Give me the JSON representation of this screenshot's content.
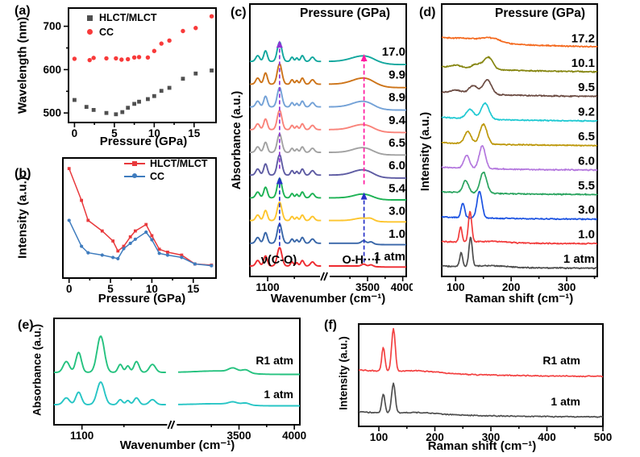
{
  "chart_data": [
    {
      "id": "a",
      "letter": "(a)",
      "type": "scatter",
      "xlabel": "Pressure (GPa)",
      "ylabel": "Wavelength (nm)",
      "xlim": [
        -0.75,
        17.75
      ],
      "ylim": [
        478,
        742
      ],
      "xticks": [
        0,
        5,
        10,
        15
      ],
      "xminors": [
        2.5,
        7.5,
        12.5
      ],
      "yticks": [
        500,
        600,
        700
      ],
      "yminors": [
        550,
        650
      ],
      "legend_pos": "top-left",
      "series": [
        {
          "name": "HLCT/MLCT",
          "marker": "square",
          "color": "#4f4f4f",
          "points": [
            [
              0,
              530
            ],
            [
              1.5,
              514
            ],
            [
              2.4,
              507
            ],
            [
              4.0,
              500
            ],
            [
              5.2,
              497
            ],
            [
              6.0,
              502
            ],
            [
              6.7,
              512
            ],
            [
              7.5,
              521
            ],
            [
              8.1,
              526
            ],
            [
              9.2,
              532
            ],
            [
              10.0,
              539
            ],
            [
              10.9,
              551
            ],
            [
              11.9,
              558
            ],
            [
              13.6,
              579
            ],
            [
              15.2,
              591
            ],
            [
              17.2,
              598
            ]
          ]
        },
        {
          "name": "CC",
          "marker": "circle",
          "color": "#f83a3a",
          "points": [
            [
              0,
              625
            ],
            [
              1.9,
              622
            ],
            [
              2.4,
              627
            ],
            [
              4.0,
              626
            ],
            [
              5.2,
              626
            ],
            [
              5.9,
              623
            ],
            [
              6.7,
              624
            ],
            [
              7.5,
              628
            ],
            [
              8.1,
              629
            ],
            [
              9.2,
              628
            ],
            [
              10.0,
              643
            ],
            [
              10.9,
              660
            ],
            [
              11.9,
              667
            ],
            [
              13.6,
              689
            ],
            [
              15.2,
              696
            ],
            [
              17.2,
              723
            ]
          ]
        }
      ]
    },
    {
      "id": "b",
      "letter": "(b)",
      "type": "line",
      "xlabel": "Pressure (GPa)",
      "ylabel": "Intensity (a.u.)",
      "xlim": [
        -0.75,
        17.75
      ],
      "ylim": [
        0,
        1.02
      ],
      "xticks": [
        0,
        5,
        10,
        15
      ],
      "xminors": [
        2.5,
        7.5,
        12.5
      ],
      "legend_pos": "top-right",
      "y_units": "normalized (a.u.)",
      "series": [
        {
          "name": "HLCT/MLCT",
          "marker": "square",
          "color": "#e8393c",
          "points": [
            [
              0,
              0.93
            ],
            [
              1.5,
              0.66
            ],
            [
              2.3,
              0.49
            ],
            [
              4,
              0.4
            ],
            [
              5.3,
              0.315
            ],
            [
              5.9,
              0.23
            ],
            [
              6.6,
              0.27
            ],
            [
              7.4,
              0.35
            ],
            [
              8,
              0.4
            ],
            [
              9.3,
              0.455
            ],
            [
              10,
              0.36
            ],
            [
              10.9,
              0.245
            ],
            [
              11.9,
              0.22
            ],
            [
              13.6,
              0.195
            ],
            [
              15.2,
              0.12
            ],
            [
              17.2,
              0.11
            ]
          ]
        },
        {
          "name": "CC",
          "marker": "circle",
          "color": "#3f7cbe",
          "points": [
            [
              0,
              0.49
            ],
            [
              1.5,
              0.27
            ],
            [
              2.3,
              0.215
            ],
            [
              4,
              0.195
            ],
            [
              5.3,
              0.175
            ],
            [
              5.9,
              0.165
            ],
            [
              6.6,
              0.25
            ],
            [
              7.4,
              0.295
            ],
            [
              8,
              0.33
            ],
            [
              9.3,
              0.39
            ],
            [
              10,
              0.325
            ],
            [
              10.9,
              0.21
            ],
            [
              11.9,
              0.195
            ],
            [
              13.6,
              0.175
            ],
            [
              15.2,
              0.12
            ],
            [
              17.2,
              0.105
            ]
          ]
        }
      ]
    },
    {
      "id": "c",
      "letter": "(c)",
      "type": "spectra-ir-stack",
      "title": "Pressure (GPa)",
      "xlabel": "Wavenumber (cm⁻¹)",
      "ylabel": "Absorbance (a.u.)",
      "annotations": {
        "nu_co": "ν(C-O)",
        "oh_i": "O-H···I"
      },
      "axis": {
        "seg1": {
          "wn": [
            1000,
            1400
          ],
          "frac": [
            0,
            0.455
          ]
        },
        "seg2": {
          "wn": [
            2950,
            4050
          ],
          "frac": [
            0.505,
            1
          ]
        },
        "break_frac": 0.48,
        "xticks": [
          {
            "wn": 1100,
            "label": "1100"
          },
          {
            "wn": 3500,
            "label": "3500"
          },
          {
            "wn": 4000,
            "label": "4000"
          }
        ],
        "xminors": [
          {
            "wn": 1250
          },
          {
            "wn": 3250
          },
          {
            "wn": 3750
          }
        ]
      },
      "shared_peaks": [
        [
          1044,
          0.3,
          11
        ],
        [
          1088,
          0.55,
          10
        ],
        [
          1167,
          1.0,
          13
        ],
        [
          1237,
          0.22,
          8
        ],
        [
          1264,
          0.18,
          7
        ],
        [
          1295,
          0.3,
          9
        ],
        [
          1352,
          0.22,
          11
        ]
      ],
      "stack_order": "bottom-to-top",
      "traces": [
        {
          "label": "1 atm",
          "color": "#ee2b30",
          "amp": 0.95,
          "oh": [
            [
              3445,
              0.1,
              30
            ],
            [
              3550,
              0.08,
              28
            ]
          ]
        },
        {
          "label": "1.0",
          "color": "#3866a8",
          "amp": 1.0,
          "oh": [
            [
              3445,
              0.14,
              32
            ],
            [
              3550,
              0.1,
              30
            ]
          ]
        },
        {
          "label": "3.0",
          "color": "#fdc52e",
          "amp": 0.95,
          "oh": [
            [
              3430,
              0.13,
              110
            ],
            [
              3550,
              0.07,
              40
            ]
          ]
        },
        {
          "label": "5.4",
          "color": "#1db254",
          "amp": 1.0,
          "oh": [
            [
              3440,
              0.2,
              130
            ]
          ]
        },
        {
          "label": "6.0",
          "color": "#5e5ca3",
          "amp": 1.05,
          "oh": [
            [
              3435,
              0.28,
              140
            ]
          ]
        },
        {
          "label": "6.5",
          "color": "#a2a2a2",
          "amp": 0.95,
          "oh": [
            [
              3435,
              0.25,
              140
            ]
          ]
        },
        {
          "label": "9.4",
          "color": "#f9837a",
          "amp": 1.0,
          "oh": [
            [
              3435,
              0.27,
              150
            ]
          ]
        },
        {
          "label": "8.9",
          "color": "#74a2d7",
          "amp": 1.0,
          "oh": [
            [
              3440,
              0.3,
              150
            ]
          ]
        },
        {
          "label": "9.9",
          "color": "#cd7419",
          "amp": 1.05,
          "oh": [
            [
              3450,
              0.33,
              160
            ]
          ]
        },
        {
          "label": "17.0",
          "color": "#12a79e",
          "amp": 1.0,
          "oh": [
            [
              3450,
              0.3,
              170
            ]
          ]
        }
      ],
      "arrows": [
        {
          "wn": 1167,
          "from": 0,
          "to": 3,
          "color": "#2731c8",
          "style": "dashed"
        },
        {
          "wn": 1167,
          "from": 3,
          "to": 9,
          "color": "#8f33d6",
          "style": "dashed"
        },
        {
          "wn": 3450,
          "from": 0,
          "to": 3,
          "color": "#2731c8",
          "style": "dashed"
        },
        {
          "wn": 3450,
          "from": 3,
          "to": 9,
          "color": "#ff1aa0",
          "style": "dashed"
        }
      ]
    },
    {
      "id": "d",
      "letter": "(d)",
      "type": "spectra-raman-stack",
      "title": "Pressure (GPa)",
      "xlabel": "Raman shift (cm⁻¹)",
      "ylabel": "Intensity (a.u.)",
      "axis": {
        "range": [
          75,
          355
        ],
        "xticks": [
          100,
          200,
          300
        ],
        "xminors": [
          150,
          250,
          350
        ]
      },
      "stack_order": "bottom-to-top",
      "traces": [
        {
          "label": "1 atm",
          "color": "#4d4d4d",
          "peaks": [
            [
              110,
              0.48,
              2.6
            ],
            [
              127,
              1.0,
              3.0
            ],
            [
              168,
              0.05,
              25
            ]
          ],
          "lift": 3
        },
        {
          "label": "1.0",
          "color": "#f23d3d",
          "peaks": [
            [
              109,
              0.52,
              2.6
            ],
            [
              126,
              1.05,
              3.0
            ],
            [
              168,
              0.05,
              25
            ]
          ],
          "lift": 3
        },
        {
          "label": "3.0",
          "color": "#1c53e2",
          "peaks": [
            [
              113,
              0.5,
              3.2
            ],
            [
              143,
              0.92,
              4.5
            ]
          ],
          "lift": 3
        },
        {
          "label": "5.5",
          "color": "#2aa45f",
          "peaks": [
            [
              118,
              0.42,
              5.0
            ],
            [
              150,
              0.72,
              6.0
            ]
          ],
          "lift": 4
        },
        {
          "label": "6.0",
          "color": "#b478de",
          "peaks": [
            [
              120,
              0.45,
              5.0
            ],
            [
              148,
              0.78,
              5.5
            ]
          ],
          "lift": 4
        },
        {
          "label": "6.5",
          "color": "#bd980b",
          "peaks": [
            [
              122,
              0.42,
              6.0
            ],
            [
              150,
              0.68,
              6.5
            ]
          ],
          "lift": 4
        },
        {
          "label": "9.2",
          "color": "#1fc9d2",
          "peaks": [
            [
              126,
              0.32,
              7.0
            ],
            [
              153,
              0.55,
              7.0
            ]
          ],
          "lift": 5
        },
        {
          "label": "9.5",
          "color": "#6c4c43",
          "peaks": [
            [
              101,
              0.1,
              9
            ],
            [
              132,
              0.28,
              8.0
            ],
            [
              157,
              0.5,
              7.5
            ]
          ],
          "lift": 6
        },
        {
          "label": "10.1",
          "color": "#85850f",
          "peaks": [
            [
              101,
              0.09,
              10
            ],
            [
              138,
              0.16,
              9.0
            ],
            [
              159,
              0.42,
              8.0
            ]
          ],
          "lift": 7
        },
        {
          "label": "17.2",
          "color": "#f4691e",
          "peaks": [
            [
              120,
              0.07,
              20
            ],
            [
              163,
              0.16,
              17
            ]
          ],
          "lift": 13
        }
      ]
    },
    {
      "id": "e",
      "letter": "(e)",
      "type": "spectra-ir-stack",
      "xlabel": "Wavenumber (cm⁻¹)",
      "ylabel": "Absorbance (a.u.)",
      "axis": {
        "seg1": {
          "wn": [
            1000,
            1400
          ],
          "frac": [
            0,
            0.455
          ]
        },
        "seg2": {
          "wn": [
            2950,
            4050
          ],
          "frac": [
            0.505,
            1
          ]
        },
        "break_frac": 0.48,
        "xticks": [
          {
            "wn": 1100,
            "label": "1100"
          },
          {
            "wn": 3500,
            "label": "3500"
          },
          {
            "wn": 4000,
            "label": "4000"
          }
        ],
        "xminors": [
          {
            "wn": 1250
          },
          {
            "wn": 3250
          },
          {
            "wn": 3750
          }
        ]
      },
      "shared_peaks": [
        [
          1044,
          0.3,
          11
        ],
        [
          1088,
          0.55,
          10
        ],
        [
          1167,
          1.0,
          13
        ],
        [
          1237,
          0.22,
          8
        ],
        [
          1264,
          0.18,
          7
        ],
        [
          1295,
          0.3,
          9
        ],
        [
          1352,
          0.22,
          11
        ]
      ],
      "stack_order": "bottom-to-top",
      "traces": [
        {
          "label": "1 atm",
          "color": "#27c5c5",
          "amp": 1.0,
          "base": 112,
          "hscale": 28,
          "oh": [
            [
              3445,
              0.1,
              38
            ],
            [
              3300,
              0.04,
              180
            ],
            [
              3560,
              0.08,
              34
            ]
          ],
          "label_x": 358,
          "label_y": 104
        },
        {
          "label": "R1 atm",
          "color": "#25c27f",
          "amp": 1.0,
          "base": 72,
          "hscale": 45,
          "oh": [
            [
              3445,
              0.1,
              38
            ],
            [
              3300,
              0.04,
              180
            ],
            [
              3560,
              0.08,
              34
            ]
          ],
          "label_x": 358,
          "label_y": 62
        }
      ]
    },
    {
      "id": "f",
      "letter": "(f)",
      "type": "spectra-raman-stack",
      "xlabel": "Raman shift (cm⁻¹)",
      "ylabel": "Intensity (a.u.)",
      "axis": {
        "range": [
          64,
          500
        ],
        "xticks": [
          100,
          200,
          300,
          400,
          500
        ],
        "xminors": [
          150,
          250,
          350,
          450
        ]
      },
      "stack_order": "bottom-to-top",
      "traces": [
        {
          "label": "1 atm",
          "color": "#4f4f4f",
          "peaks": [
            [
              108,
              0.62,
              2.8
            ],
            [
              126,
              1.0,
              3.2
            ],
            [
              175,
              0.05,
              35
            ]
          ],
          "base": 128,
          "hscale": 37,
          "lift": 7,
          "label_x": 322,
          "label_y": 113
        },
        {
          "label": "R1 atm",
          "color": "#f34242",
          "peaks": [
            [
              108,
              0.55,
              2.8
            ],
            [
              126,
              1.0,
              3.2
            ],
            [
              175,
              0.05,
              35
            ]
          ],
          "base": 78,
          "hscale": 53,
          "lift": 9,
          "label_x": 322,
          "label_y": 62
        }
      ]
    }
  ]
}
